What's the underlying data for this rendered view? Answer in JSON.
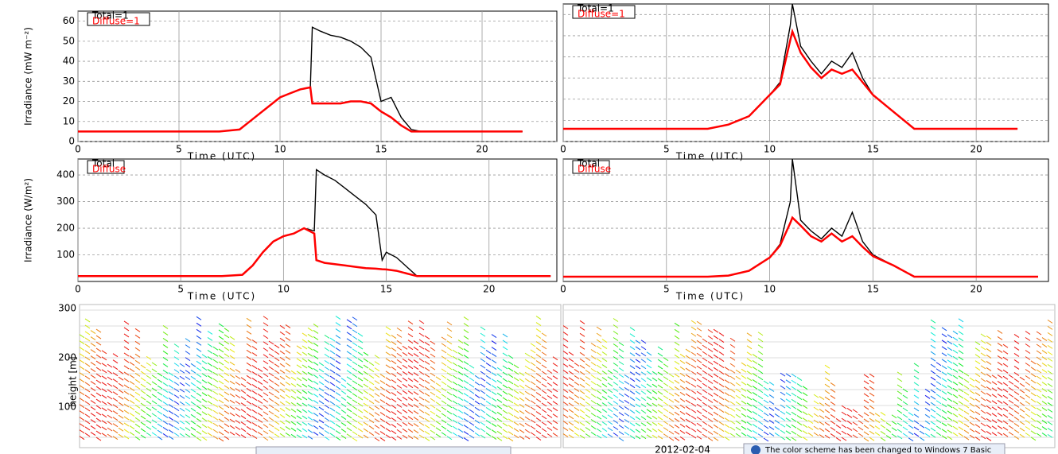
{
  "chart_data": [
    {
      "type": "line",
      "xlabel": "Time (UTC)",
      "ylabel": "Irradiance (mW m⁻²)",
      "xlim": [
        0,
        23.7
      ],
      "xticks": [
        0,
        5,
        10,
        15,
        20
      ],
      "ylim": [
        0,
        65
      ],
      "yticks": [
        0,
        10,
        20,
        30,
        40,
        50,
        60
      ],
      "show_ytick_labels": true,
      "grid": true,
      "x": [
        0,
        2,
        4,
        6,
        7,
        8,
        8.5,
        9,
        9.5,
        10,
        10.5,
        11,
        11.5,
        11.6,
        12,
        12.5,
        13,
        13.5,
        14,
        14.5,
        15,
        15.5,
        16,
        16.5,
        17,
        18,
        20,
        22
      ],
      "series": [
        {
          "name": "Total=1",
          "color": "#000000",
          "values": [
            5,
            5,
            5,
            5,
            5,
            6,
            10,
            14,
            18,
            22,
            24,
            26,
            27,
            57,
            55,
            53,
            52,
            50,
            47,
            42,
            20,
            22,
            12,
            6,
            5,
            5,
            5,
            5
          ]
        },
        {
          "name": "Diffuse=1",
          "color": "#ff0000",
          "values": [
            5,
            5,
            5,
            5,
            5,
            6,
            10,
            14,
            18,
            22,
            24,
            26,
            27,
            19,
            19,
            19,
            19,
            20,
            20,
            19,
            15,
            12,
            8,
            5,
            5,
            5,
            5,
            5
          ]
        }
      ]
    },
    {
      "type": "line",
      "xlabel": "Time (UTC)",
      "xlim": [
        0,
        23.5
      ],
      "xticks": [
        0,
        5,
        10,
        15,
        20
      ],
      "ylim": [
        0,
        65
      ],
      "yticks": [
        0,
        10,
        20,
        30,
        40,
        50,
        60
      ],
      "show_ytick_labels": false,
      "grid": true,
      "x": [
        0,
        2,
        4,
        6,
        7,
        8,
        9,
        10,
        10.5,
        11,
        11.1,
        11.5,
        12,
        12.5,
        13,
        13.5,
        14,
        14.5,
        15,
        16,
        17,
        18,
        20,
        22
      ],
      "series": [
        {
          "name": "Total=1",
          "color": "#000000",
          "values": [
            6,
            6,
            6,
            6,
            6,
            8,
            12,
            22,
            28,
            55,
            65,
            45,
            38,
            32,
            38,
            35,
            42,
            30,
            22,
            14,
            6,
            6,
            6,
            6
          ]
        },
        {
          "name": "Diffuse=1",
          "color": "#ff0000",
          "values": [
            6,
            6,
            6,
            6,
            6,
            8,
            12,
            22,
            27,
            48,
            52,
            42,
            35,
            30,
            34,
            32,
            34,
            28,
            22,
            14,
            6,
            6,
            6,
            6
          ]
        }
      ]
    },
    {
      "type": "line",
      "xlabel": "Time (UTC)",
      "ylabel": "Irradiance (W/m²)",
      "xlim": [
        0,
        23.3
      ],
      "xticks": [
        0,
        5,
        10,
        15,
        20
      ],
      "ylim": [
        0,
        460
      ],
      "yticks": [
        100,
        200,
        300,
        400
      ],
      "show_ytick_labels": true,
      "grid": true,
      "x": [
        0,
        2,
        4,
        6,
        7,
        8,
        8.5,
        9,
        9.5,
        10,
        10.5,
        11,
        11.5,
        11.6,
        12,
        12.5,
        13,
        13.5,
        14,
        14.5,
        14.8,
        15,
        15.5,
        16,
        16.5,
        17,
        20,
        23
      ],
      "series": [
        {
          "name": "Total",
          "color": "#000000",
          "values": [
            20,
            20,
            20,
            20,
            20,
            25,
            60,
            110,
            150,
            170,
            180,
            200,
            190,
            420,
            400,
            380,
            350,
            320,
            290,
            250,
            80,
            110,
            90,
            55,
            20,
            20,
            20,
            20
          ]
        },
        {
          "name": "Diffuse",
          "color": "#ff0000",
          "values": [
            20,
            20,
            20,
            20,
            20,
            25,
            60,
            110,
            150,
            170,
            180,
            200,
            180,
            80,
            70,
            65,
            60,
            55,
            50,
            48,
            46,
            45,
            40,
            30,
            20,
            20,
            20,
            20
          ]
        }
      ]
    },
    {
      "type": "line",
      "xlabel": "Time (UTC)",
      "xlim": [
        0,
        23.5
      ],
      "xticks": [
        0,
        5,
        10,
        15,
        20
      ],
      "ylim": [
        0,
        460
      ],
      "yticks": [
        100,
        200,
        300,
        400
      ],
      "show_ytick_labels": false,
      "grid": true,
      "x": [
        0,
        2,
        4,
        6,
        7,
        8,
        9,
        10,
        10.5,
        11,
        11.1,
        11.5,
        12,
        12.5,
        13,
        13.5,
        14,
        14.5,
        15,
        16,
        17,
        18,
        20,
        23
      ],
      "series": [
        {
          "name": "Total",
          "color": "#000000",
          "values": [
            18,
            18,
            18,
            18,
            18,
            22,
            40,
            90,
            140,
            300,
            460,
            230,
            190,
            160,
            200,
            170,
            260,
            150,
            100,
            60,
            18,
            18,
            18,
            18
          ]
        },
        {
          "name": "Diffuse",
          "color": "#ff0000",
          "values": [
            18,
            18,
            18,
            18,
            18,
            22,
            40,
            90,
            135,
            220,
            240,
            210,
            170,
            150,
            180,
            150,
            170,
            130,
            95,
            60,
            18,
            18,
            18,
            18
          ]
        }
      ]
    }
  ],
  "wind": {
    "ylabel": "height [m]",
    "yticks": [
      "300",
      "200",
      "100"
    ],
    "date": "2012-02-04"
  },
  "notification": "The color scheme has been changed to Windows 7 Basic"
}
